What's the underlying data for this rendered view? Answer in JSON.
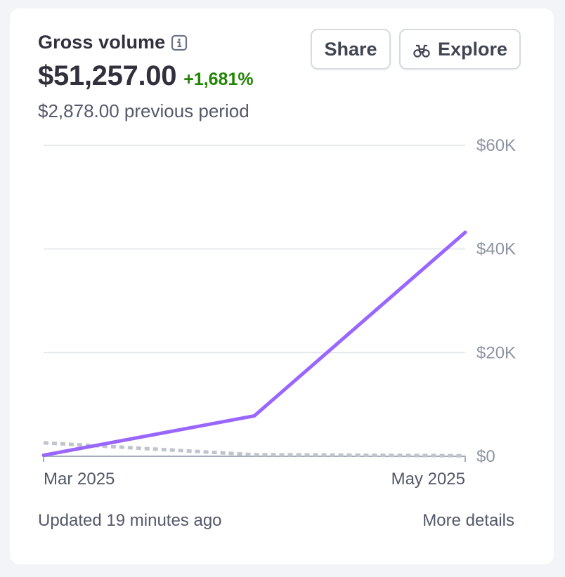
{
  "card": {
    "title": "Gross volume",
    "info_icon": "info-icon",
    "value": "$51,257.00",
    "delta": "+1,681%",
    "previous": "$2,878.00 previous period",
    "share_label": "Share",
    "explore_label": "Explore",
    "explore_icon": "binoculars-icon",
    "updated": "Updated 19 minutes ago",
    "more_details": "More details"
  },
  "colors": {
    "current_series": "#9966ff",
    "previous_series": "#c0c4cc",
    "delta_positive": "#228403"
  },
  "chart_data": {
    "type": "line",
    "x_tick_labels": [
      "Mar 2025",
      "May 2025"
    ],
    "x": [
      "Mar 2025",
      "Apr 2025",
      "May 2025"
    ],
    "y_ticks": [
      0,
      20000,
      40000,
      60000
    ],
    "y_tick_labels": [
      "$0",
      "$20K",
      "$40K",
      "$60K"
    ],
    "ylim": [
      0,
      60000
    ],
    "grid": true,
    "series": [
      {
        "values": [
          200,
          7800,
          43200
        ],
        "style": "solid",
        "color": "#9966ff"
      },
      {
        "values": [
          2600,
          300,
          100
        ],
        "style": "dotted",
        "color": "#c0c4cc"
      }
    ]
  }
}
